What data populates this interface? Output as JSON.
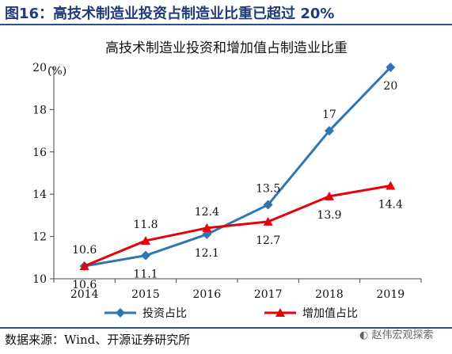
{
  "figure": {
    "title": "图16：高技术制造业投资占制造业比重已超过 20%",
    "source": "数据来源：Wind、开源证券研究所",
    "watermark": "赵伟宏观探索"
  },
  "chart_data": {
    "type": "line",
    "title": "高技术制造业投资和增加值占制造业比重",
    "ylabel": "(%)",
    "xlabel": "",
    "ylim": [
      10,
      20
    ],
    "yticks": [
      10,
      12,
      14,
      16,
      18,
      20
    ],
    "grid": false,
    "legend_position": "bottom",
    "categories": [
      "2014",
      "2015",
      "2016",
      "2017",
      "2018",
      "2019"
    ],
    "series": [
      {
        "name": "投资占比",
        "color": "#2e75b6",
        "marker": "diamond",
        "values": [
          10.6,
          11.1,
          12.1,
          13.5,
          17,
          20
        ],
        "labels": [
          "10.6",
          "11.1",
          "12.1",
          "13.5",
          "17",
          "20"
        ]
      },
      {
        "name": "增加值占比",
        "color": "#e8000b",
        "marker": "triangle",
        "values": [
          10.6,
          11.8,
          12.4,
          12.7,
          13.9,
          14.4
        ],
        "labels": [
          "10.6",
          "11.8",
          "12.4",
          "12.7",
          "13.9",
          "14.4"
        ]
      }
    ]
  }
}
